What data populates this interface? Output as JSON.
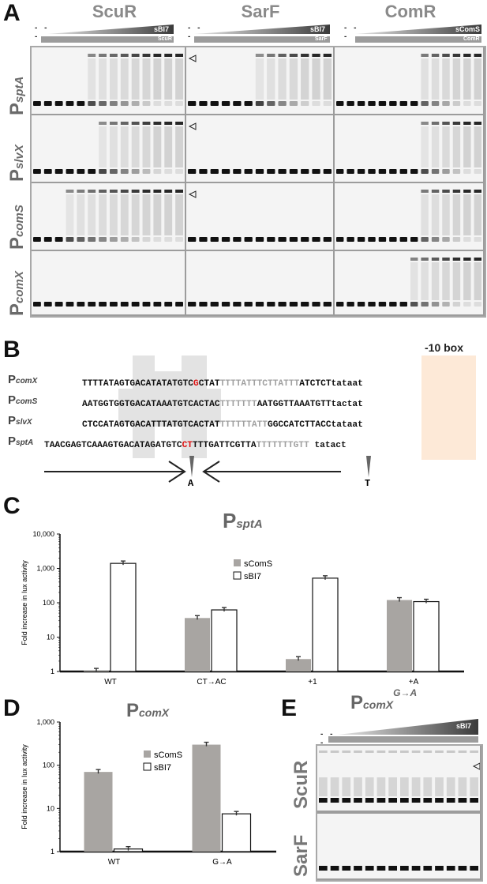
{
  "panels": {
    "A": "A",
    "B": "B",
    "C": "C",
    "D": "D",
    "E": "E"
  },
  "panel_a": {
    "proteins": [
      {
        "name": "ScuR",
        "ramp_top": "sBI7",
        "ramp_bottom": "ScuR"
      },
      {
        "name": "SarF",
        "ramp_top": "sBI7",
        "ramp_bottom": "SarF"
      },
      {
        "name": "ComR",
        "ramp_top": "sComS",
        "ramp_bottom": "ComR"
      }
    ],
    "rows": [
      {
        "p": "P",
        "sub": "sptA"
      },
      {
        "p": "P",
        "sub": "slvX"
      },
      {
        "p": "P",
        "sub": "comS"
      },
      {
        "p": "P",
        "sub": "comX"
      }
    ]
  },
  "panel_b": {
    "box_label": "-10 box",
    "sequences": [
      {
        "p": "P",
        "sub": "comX",
        "pre": "TTTTATAGTGACATATATGTC",
        "red": "G",
        "mid": "CTAT",
        "gray": "TTTTATTTCTTATTT",
        "post": "ATCTCT",
        "box": "tataat"
      },
      {
        "p": "P",
        "sub": "comS",
        "pre": "AATGGTGGTGACATAAATGTCACTAC",
        "red": "",
        "mid": "",
        "gray": "TTTTTTT",
        "post": "AATGGTTAAATGTT",
        "box": "tactat"
      },
      {
        "p": "P",
        "sub": "slvX",
        "pre": "CTCCATAGTGACATTTATGTCACTAT",
        "red": "",
        "mid": "",
        "gray": "TTTTTTATT",
        "post": "GGCCATCTTACC",
        "box": "tataat"
      },
      {
        "p": "P",
        "sub": "sptA",
        "pre": "TAACGAGTCAAAGTGACATAGATGTC",
        "red": "CT",
        "mid": "TTTGATTCGTTA",
        "gray": "TTTTTTTGTT",
        "post": "",
        "box": "tatact"
      }
    ],
    "mut_a": "A",
    "mut_t": "T"
  },
  "panel_c": {
    "title_p": "P",
    "title_sub": "sptA",
    "ylabel": "Fold increase in lux activity",
    "legend": [
      "sComS",
      "sBI7"
    ]
  },
  "panel_d": {
    "title_p": "P",
    "title_sub": "comX",
    "ylabel": "Fold increase in lux activity",
    "legend": [
      "sComS",
      "sBI7"
    ]
  },
  "panel_e": {
    "title_p": "P",
    "title_sub": "comX",
    "title_sup": "G→A",
    "ramp_top": "sBI7",
    "proteins": [
      "ScuR",
      "SarF"
    ]
  },
  "chart_data": [
    {
      "type": "bar",
      "panel": "C",
      "title": "PsptA",
      "ylabel": "Fold increase in lux activity",
      "yscale": "log",
      "ylim": [
        1,
        10000
      ],
      "yticks": [
        "1",
        "10",
        "100",
        "1,000",
        "10,000"
      ],
      "categories": [
        "WT",
        "CT→AC",
        "+1",
        "+A"
      ],
      "series": [
        {
          "name": "sComS",
          "color": "#a8a5a2",
          "values": [
            1.05,
            36,
            2.3,
            120
          ]
        },
        {
          "name": "sBI7",
          "color": "#ffffff",
          "values": [
            1400,
            62,
            520,
            108
          ]
        }
      ],
      "legend_position": "center"
    },
    {
      "type": "bar",
      "panel": "D",
      "title": "PcomX",
      "ylabel": "Fold increase in lux activity",
      "yscale": "log",
      "ylim": [
        1,
        1000
      ],
      "yticks": [
        "1",
        "10",
        "100",
        "1,000"
      ],
      "categories": [
        "WT",
        "G→A"
      ],
      "series": [
        {
          "name": "sComS",
          "color": "#a8a5a2",
          "values": [
            70,
            300
          ]
        },
        {
          "name": "sBI7",
          "color": "#ffffff",
          "values": [
            1.15,
            7.5
          ]
        }
      ],
      "legend_position": "top-right"
    }
  ]
}
